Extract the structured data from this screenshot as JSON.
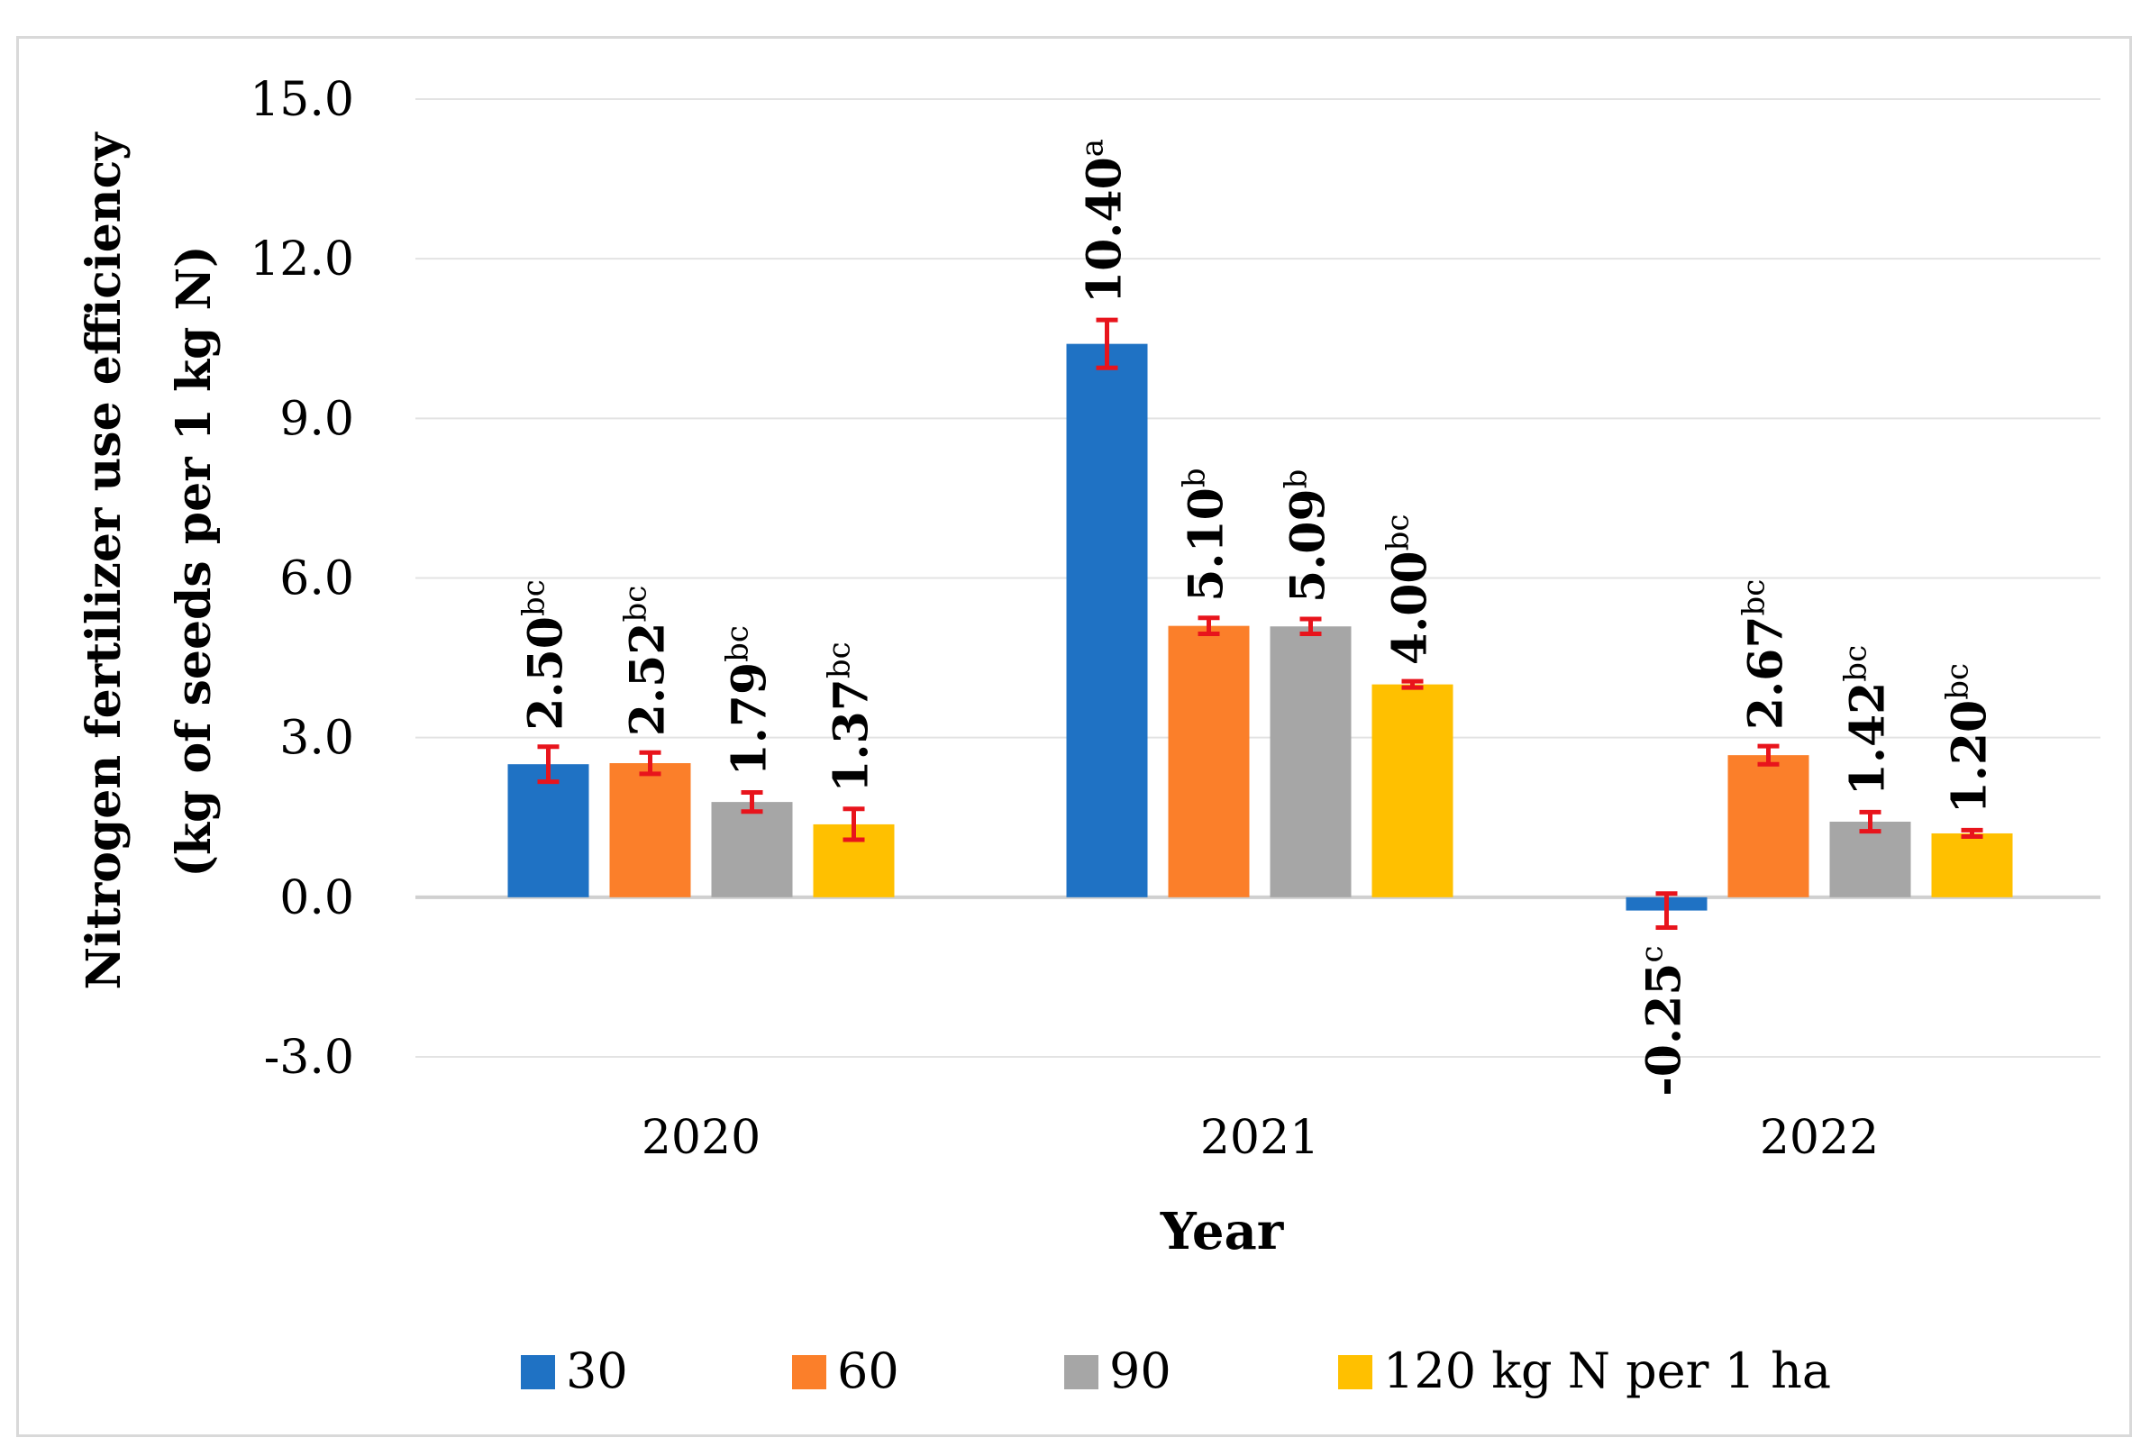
{
  "chart_data": {
    "type": "bar",
    "title": "",
    "xlabel": "Year",
    "ylabel_line1": "Nitrogen fertilizer use efficiency",
    "ylabel_line2": "(kg of seeds per 1 kg N)",
    "categories": [
      "2020",
      "2021",
      "2022"
    ],
    "ylim": [
      -3.0,
      15.0
    ],
    "yticks": [
      -3.0,
      0.0,
      3.0,
      6.0,
      9.0,
      12.0,
      15.0
    ],
    "ytick_labels": [
      "-3.0",
      "0.0",
      "3.0",
      "6.0",
      "9.0",
      "12.0",
      "15.0"
    ],
    "grid": true,
    "legend_position": "bottom",
    "series": [
      {
        "name": "30",
        "color": "#1f72c4",
        "values": [
          2.5,
          10.4,
          -0.25
        ],
        "errors": [
          0.33,
          0.45,
          0.32
        ],
        "labels": [
          "2.50",
          "10.40",
          "-0.25"
        ],
        "letters": [
          "bc",
          "a",
          "c"
        ]
      },
      {
        "name": "60",
        "color": "#fb7f2a",
        "values": [
          2.52,
          5.1,
          2.67
        ],
        "errors": [
          0.2,
          0.15,
          0.17
        ],
        "labels": [
          "2.52",
          "5.10",
          "2.67"
        ],
        "letters": [
          "bc",
          "b",
          "bc"
        ]
      },
      {
        "name": "90",
        "color": "#a6a6a6",
        "values": [
          1.79,
          5.09,
          1.42
        ],
        "errors": [
          0.18,
          0.14,
          0.18
        ],
        "labels": [
          "1.79",
          "5.09",
          "1.42"
        ],
        "letters": [
          "bc",
          "b",
          "bc"
        ]
      },
      {
        "name": "120 kg N per 1 ha",
        "color": "#ffc000",
        "values": [
          1.37,
          4.0,
          1.2
        ],
        "errors": [
          0.29,
          0.06,
          0.06
        ],
        "labels": [
          "1.37",
          "4.00",
          "1.20"
        ],
        "letters": [
          "bc",
          "bc",
          "bc"
        ]
      }
    ],
    "error_bar_color": "#e8141c"
  }
}
